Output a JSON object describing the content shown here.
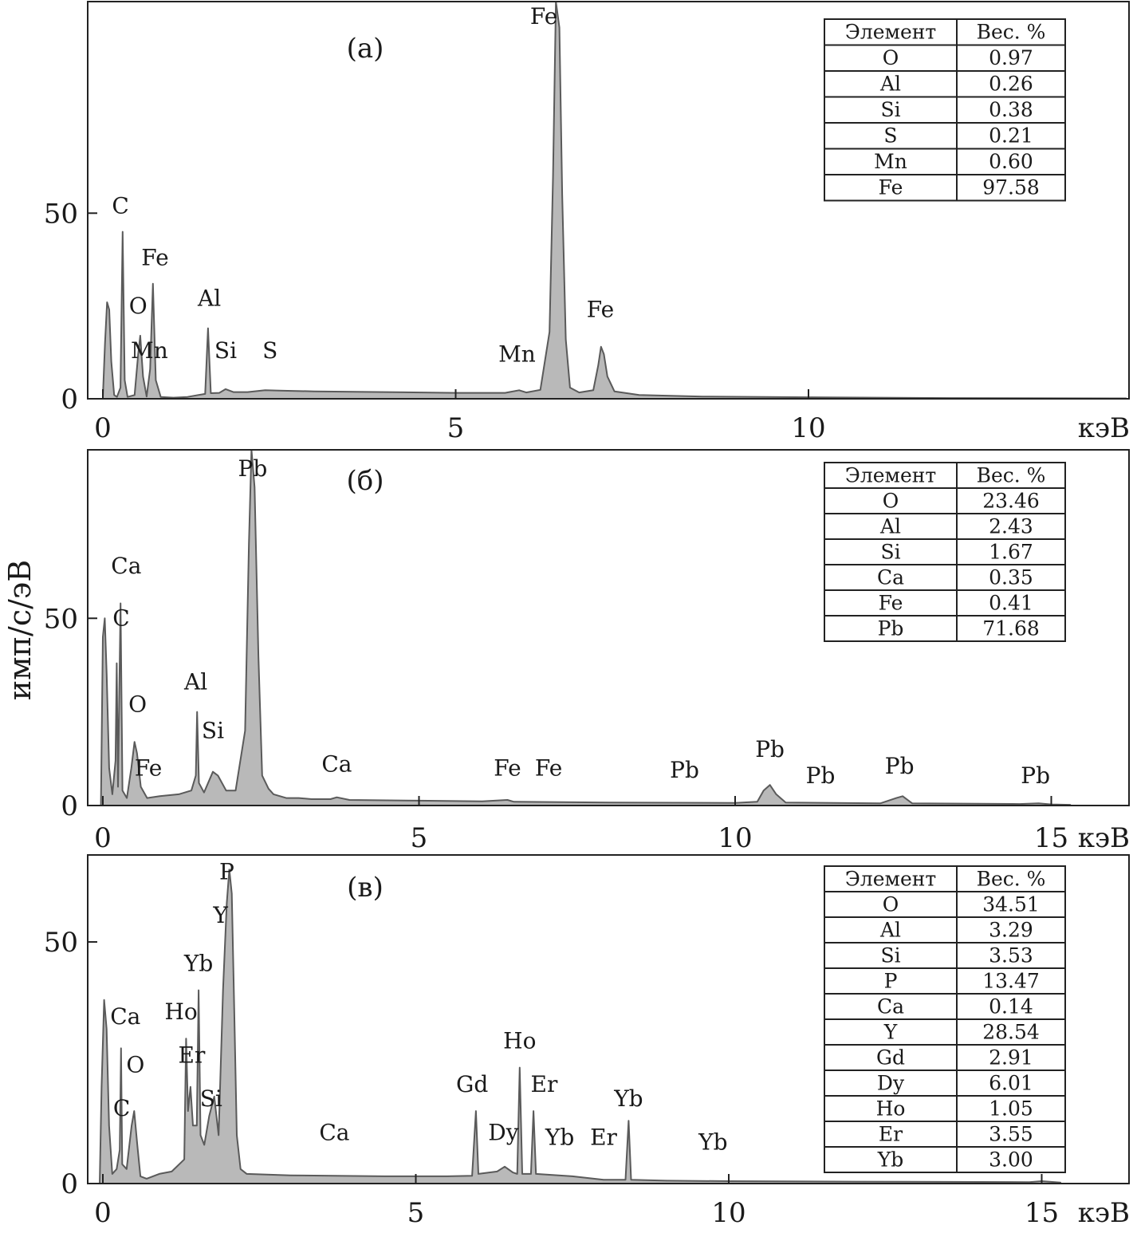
{
  "y_axis_label": "имп/с/эВ",
  "chart_data": [
    {
      "type": "area",
      "panel_label": "(a)",
      "x_unit_label": "кэВ",
      "xlim": [
        -0.2,
        14.6
      ],
      "ylim": [
        0,
        107
      ],
      "x_ticks": [
        0,
        5,
        10
      ],
      "y_ticks": [
        0,
        50
      ],
      "series": [
        {
          "name": "spectrum",
          "points": [
            [
              0,
              0.5
            ],
            [
              0.03,
              15
            ],
            [
              0.06,
              26
            ],
            [
              0.09,
              24
            ],
            [
              0.12,
              10
            ],
            [
              0.16,
              1
            ],
            [
              0.2,
              0.5
            ],
            [
              0.25,
              3
            ],
            [
              0.28,
              45
            ],
            [
              0.31,
              5
            ],
            [
              0.35,
              0.5
            ],
            [
              0.45,
              1
            ],
            [
              0.5,
              12
            ],
            [
              0.53,
              17
            ],
            [
              0.57,
              6
            ],
            [
              0.62,
              0.6
            ],
            [
              0.67,
              8
            ],
            [
              0.71,
              31
            ],
            [
              0.75,
              5
            ],
            [
              0.82,
              0.5
            ],
            [
              1.0,
              0.3
            ],
            [
              1.2,
              0.5
            ],
            [
              1.35,
              1
            ],
            [
              1.45,
              1.3
            ],
            [
              1.49,
              19
            ],
            [
              1.53,
              1.5
            ],
            [
              1.65,
              1.6
            ],
            [
              1.74,
              2.6
            ],
            [
              1.85,
              1.8
            ],
            [
              2.05,
              1.8
            ],
            [
              2.3,
              2.3
            ],
            [
              2.5,
              2.2
            ],
            [
              3,
              2.0
            ],
            [
              4,
              1.8
            ],
            [
              5,
              1.6
            ],
            [
              5.7,
              1.6
            ],
            [
              5.9,
              2.3
            ],
            [
              6.0,
              1.7
            ],
            [
              6.2,
              2.4
            ],
            [
              6.33,
              18
            ],
            [
              6.38,
              60
            ],
            [
              6.42,
              107
            ],
            [
              6.47,
              100
            ],
            [
              6.51,
              55
            ],
            [
              6.56,
              16
            ],
            [
              6.62,
              3
            ],
            [
              6.75,
              1.7
            ],
            [
              6.95,
              2.3
            ],
            [
              7.02,
              9
            ],
            [
              7.06,
              14
            ],
            [
              7.1,
              12
            ],
            [
              7.15,
              6
            ],
            [
              7.25,
              2
            ],
            [
              7.6,
              1
            ],
            [
              8.5,
              0.6
            ],
            [
              10,
              0.4
            ],
            [
              12,
              0.2
            ],
            [
              14.5,
              0.1
            ]
          ]
        }
      ],
      "peak_labels": [
        {
          "text": "C",
          "x": 0.25,
          "y": 50
        },
        {
          "text": "Fe",
          "x": 0.74,
          "y": 36
        },
        {
          "text": "O",
          "x": 0.5,
          "y": 23
        },
        {
          "text": "Mn",
          "x": 0.66,
          "y": 11
        },
        {
          "text": "Al",
          "x": 1.51,
          "y": 25
        },
        {
          "text": "Si",
          "x": 1.74,
          "y": 11
        },
        {
          "text": "S",
          "x": 2.37,
          "y": 11
        },
        {
          "text": "Fe",
          "x": 6.25,
          "y": 101
        },
        {
          "text": "Mn",
          "x": 5.87,
          "y": 10
        },
        {
          "text": "Fe",
          "x": 7.05,
          "y": 22
        }
      ],
      "table": {
        "headers": [
          "Элемент",
          "Вес. %"
        ],
        "rows": [
          [
            "O",
            "0.97"
          ],
          [
            "Al",
            "0.26"
          ],
          [
            "Si",
            "0.38"
          ],
          [
            "S",
            "0.21"
          ],
          [
            "Mn",
            "0.60"
          ],
          [
            "Fe",
            "97.58"
          ]
        ]
      }
    },
    {
      "type": "area",
      "panel_label": "(б)",
      "x_unit_label": "кэВ",
      "xlim": [
        -0.45,
        16.1
      ],
      "ylim": [
        0,
        95
      ],
      "x_ticks": [
        0,
        5,
        10,
        15
      ],
      "y_ticks": [
        0,
        50
      ],
      "series": [
        {
          "name": "spectrum",
          "points": [
            [
              -0.03,
              0.5
            ],
            [
              0.0,
              45
            ],
            [
              0.03,
              50
            ],
            [
              0.06,
              35
            ],
            [
              0.1,
              10
            ],
            [
              0.15,
              3
            ],
            [
              0.2,
              12
            ],
            [
              0.22,
              38
            ],
            [
              0.24,
              5
            ],
            [
              0.26,
              30
            ],
            [
              0.28,
              54
            ],
            [
              0.31,
              4
            ],
            [
              0.38,
              2
            ],
            [
              0.45,
              10
            ],
            [
              0.5,
              17
            ],
            [
              0.54,
              14
            ],
            [
              0.6,
              5
            ],
            [
              0.7,
              2
            ],
            [
              0.9,
              2.5
            ],
            [
              1.2,
              3
            ],
            [
              1.4,
              4
            ],
            [
              1.47,
              8
            ],
            [
              1.49,
              25
            ],
            [
              1.52,
              6
            ],
            [
              1.6,
              3.5
            ],
            [
              1.74,
              9
            ],
            [
              1.82,
              8
            ],
            [
              1.95,
              4
            ],
            [
              2.1,
              4
            ],
            [
              2.25,
              20
            ],
            [
              2.31,
              70
            ],
            [
              2.35,
              95
            ],
            [
              2.4,
              85
            ],
            [
              2.46,
              40
            ],
            [
              2.52,
              8
            ],
            [
              2.62,
              4.5
            ],
            [
              2.7,
              3
            ],
            [
              2.9,
              2.0
            ],
            [
              3.1,
              2.0
            ],
            [
              3.3,
              1.7
            ],
            [
              3.6,
              1.7
            ],
            [
              3.7,
              2.2
            ],
            [
              3.9,
              1.5
            ],
            [
              5,
              1.3
            ],
            [
              6,
              1.1
            ],
            [
              6.4,
              1.5
            ],
            [
              6.5,
              1
            ],
            [
              8,
              0.8
            ],
            [
              10,
              0.7
            ],
            [
              10.35,
              1
            ],
            [
              10.45,
              4
            ],
            [
              10.55,
              5.5
            ],
            [
              10.65,
              3
            ],
            [
              10.8,
              0.8
            ],
            [
              12.3,
              0.6
            ],
            [
              12.55,
              2
            ],
            [
              12.65,
              2.5
            ],
            [
              12.8,
              0.6
            ],
            [
              14.5,
              0.4
            ],
            [
              14.8,
              0.6
            ],
            [
              15,
              0.3
            ],
            [
              15.3,
              0.2
            ]
          ]
        }
      ],
      "peak_labels": [
        {
          "text": "Ca",
          "x": 0.37,
          "y": 62
        },
        {
          "text": "C",
          "x": 0.29,
          "y": 48
        },
        {
          "text": "O",
          "x": 0.55,
          "y": 25
        },
        {
          "text": "Fe",
          "x": 0.72,
          "y": 8
        },
        {
          "text": "Al",
          "x": 1.47,
          "y": 31
        },
        {
          "text": "Si",
          "x": 1.74,
          "y": 18
        },
        {
          "text": "Pb",
          "x": 2.37,
          "y": 88
        },
        {
          "text": "Ca",
          "x": 3.7,
          "y": 9
        },
        {
          "text": "Fe",
          "x": 6.4,
          "y": 8
        },
        {
          "text": "Fe",
          "x": 7.05,
          "y": 8
        },
        {
          "text": "Pb",
          "x": 9.2,
          "y": 7.5
        },
        {
          "text": "Pb",
          "x": 10.55,
          "y": 13
        },
        {
          "text": "Pb",
          "x": 11.35,
          "y": 6
        },
        {
          "text": "Pb",
          "x": 12.6,
          "y": 8.5
        },
        {
          "text": "Pb",
          "x": 14.75,
          "y": 6
        }
      ],
      "table": {
        "headers": [
          "Элемент",
          "Вес. %"
        ],
        "rows": [
          [
            "O",
            "23.46"
          ],
          [
            "Al",
            "2.43"
          ],
          [
            "Si",
            "1.67"
          ],
          [
            "Ca",
            "0.35"
          ],
          [
            "Fe",
            "0.41"
          ],
          [
            "Pb",
            "71.68"
          ]
        ]
      }
    },
    {
      "type": "area",
      "panel_label": "(в)",
      "x_unit_label": "кэВ",
      "xlim": [
        -0.45,
        16.1
      ],
      "ylim": [
        0,
        68
      ],
      "x_ticks": [
        0,
        5,
        10,
        15
      ],
      "y_ticks": [
        0,
        50
      ],
      "series": [
        {
          "name": "spectrum",
          "points": [
            [
              -0.05,
              0.5
            ],
            [
              -0.02,
              20
            ],
            [
              0.02,
              38
            ],
            [
              0.06,
              32
            ],
            [
              0.1,
              12
            ],
            [
              0.15,
              2
            ],
            [
              0.22,
              3
            ],
            [
              0.27,
              7
            ],
            [
              0.29,
              28
            ],
            [
              0.31,
              4
            ],
            [
              0.38,
              3
            ],
            [
              0.46,
              12
            ],
            [
              0.5,
              15
            ],
            [
              0.55,
              8
            ],
            [
              0.6,
              1.5
            ],
            [
              0.7,
              1
            ],
            [
              0.9,
              2
            ],
            [
              1.1,
              2.5
            ],
            [
              1.3,
              5
            ],
            [
              1.33,
              30
            ],
            [
              1.36,
              15
            ],
            [
              1.4,
              20
            ],
            [
              1.44,
              12
            ],
            [
              1.5,
              12
            ],
            [
              1.53,
              40
            ],
            [
              1.56,
              10
            ],
            [
              1.62,
              8
            ],
            [
              1.7,
              14
            ],
            [
              1.78,
              18
            ],
            [
              1.85,
              10
            ],
            [
              1.92,
              40
            ],
            [
              1.98,
              58
            ],
            [
              2.02,
              65
            ],
            [
              2.06,
              60
            ],
            [
              2.1,
              35
            ],
            [
              2.14,
              10
            ],
            [
              2.2,
              3
            ],
            [
              2.3,
              2
            ],
            [
              3,
              1.7
            ],
            [
              3.7,
              1.6
            ],
            [
              4.5,
              1.5
            ],
            [
              5.5,
              1.5
            ],
            [
              5.9,
              1.6
            ],
            [
              5.96,
              15
            ],
            [
              6.0,
              2
            ],
            [
              6.3,
              2.5
            ],
            [
              6.42,
              3.5
            ],
            [
              6.55,
              2.3
            ],
            [
              6.62,
              2
            ],
            [
              6.66,
              24
            ],
            [
              6.7,
              2
            ],
            [
              6.84,
              2
            ],
            [
              6.88,
              15
            ],
            [
              6.92,
              2
            ],
            [
              7.5,
              1.5
            ],
            [
              8,
              0.8
            ],
            [
              8.35,
              0.8
            ],
            [
              8.4,
              13
            ],
            [
              8.44,
              0.8
            ],
            [
              9,
              0.6
            ],
            [
              10,
              0.5
            ],
            [
              12,
              0.4
            ],
            [
              14.8,
              0.3
            ],
            [
              15,
              0.5
            ],
            [
              15.3,
              0.2
            ]
          ]
        }
      ],
      "peak_labels": [
        {
          "text": "Ca",
          "x": 0.36,
          "y": 33
        },
        {
          "text": "O",
          "x": 0.52,
          "y": 23
        },
        {
          "text": "C",
          "x": 0.3,
          "y": 14
        },
        {
          "text": "Ho",
          "x": 1.25,
          "y": 34
        },
        {
          "text": "Yb",
          "x": 1.53,
          "y": 44
        },
        {
          "text": "Er",
          "x": 1.42,
          "y": 25
        },
        {
          "text": "Si",
          "x": 1.73,
          "y": 16
        },
        {
          "text": "Y",
          "x": 1.88,
          "y": 54
        },
        {
          "text": "P",
          "x": 1.98,
          "y": 63
        },
        {
          "text": "Ca",
          "x": 3.7,
          "y": 9
        },
        {
          "text": "Gd",
          "x": 5.9,
          "y": 19
        },
        {
          "text": "Dy",
          "x": 6.4,
          "y": 9
        },
        {
          "text": "Ho",
          "x": 6.66,
          "y": 28
        },
        {
          "text": "Er",
          "x": 7.05,
          "y": 19
        },
        {
          "text": "Yb",
          "x": 7.3,
          "y": 8
        },
        {
          "text": "Er",
          "x": 8.0,
          "y": 8
        },
        {
          "text": "Yb",
          "x": 8.4,
          "y": 16
        },
        {
          "text": "Yb",
          "x": 9.75,
          "y": 7
        }
      ],
      "table": {
        "headers": [
          "Элемент",
          "Вес. %"
        ],
        "rows": [
          [
            "O",
            "34.51"
          ],
          [
            "Al",
            "3.29"
          ],
          [
            "Si",
            "3.53"
          ],
          [
            "P",
            "13.47"
          ],
          [
            "Ca",
            "0.14"
          ],
          [
            "Y",
            "28.54"
          ],
          [
            "Gd",
            "2.91"
          ],
          [
            "Dy",
            "6.01"
          ],
          [
            "Ho",
            "1.05"
          ],
          [
            "Er",
            "3.55"
          ],
          [
            "Yb",
            "3.00"
          ]
        ]
      }
    }
  ]
}
